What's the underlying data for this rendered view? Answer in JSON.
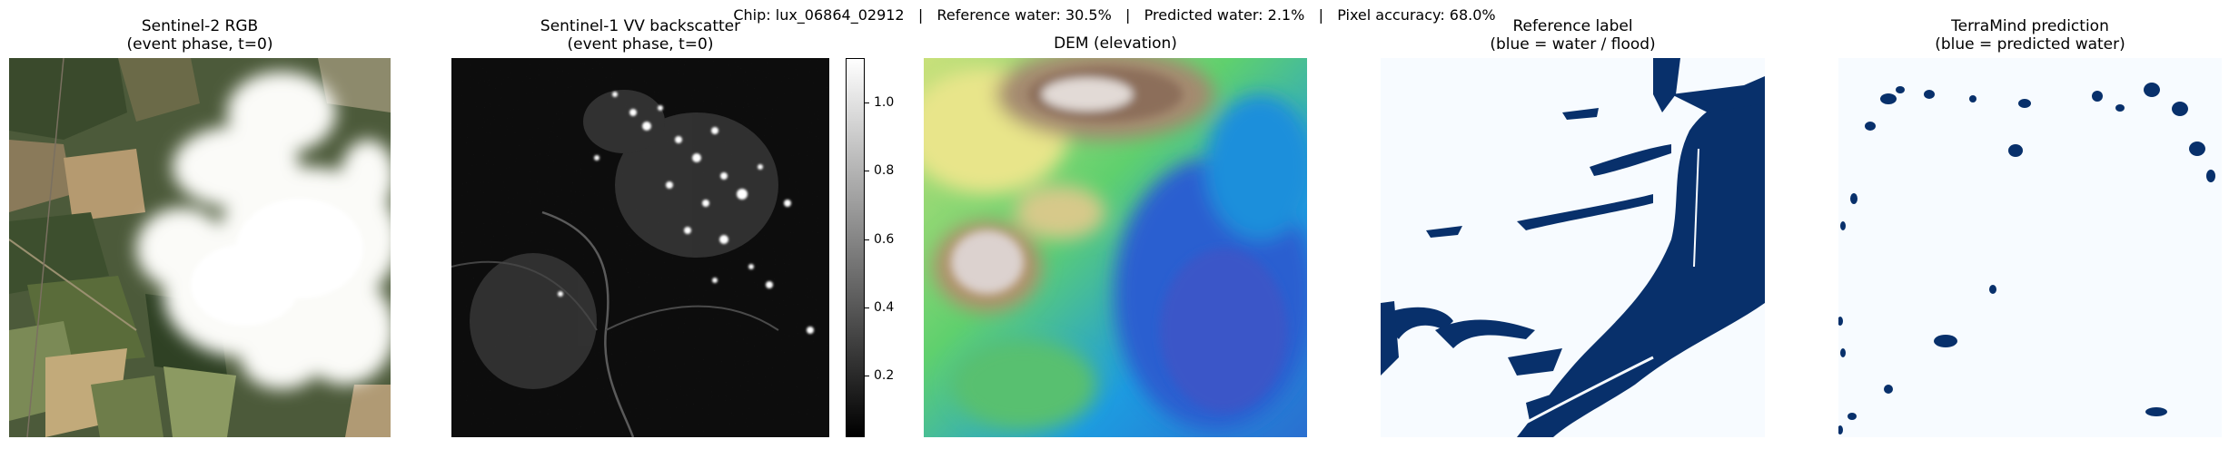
{
  "suptitle": "Chip: lux_06864_02912   |   Reference water: 30.5%   |   Predicted water: 2.1%   |   Pixel accuracy: 68.0%",
  "panels": [
    {
      "line1": "Sentinel-2  RGB",
      "line2": "(event phase, t=0)"
    },
    {
      "line1": "Sentinel-1  VV backscatter",
      "line2": "(event phase, t=0)"
    },
    {
      "line1": "DEM  (elevation)",
      "line2": ""
    },
    {
      "line1": "Reference label",
      "line2": "(blue = water / flood)"
    },
    {
      "line1": "TerraMind prediction",
      "line2": "(blue = predicted water)"
    }
  ],
  "colorbar": {
    "ticks": [
      "0.2",
      "0.4",
      "0.6",
      "0.8",
      "1.0"
    ],
    "range": [
      0.02,
      1.13
    ]
  },
  "colors": {
    "water": "#08306b",
    "land_bg": "#f7fbff"
  },
  "chart_data": [
    {
      "type": "image",
      "title": "Sentinel-2  RGB\n(event phase, t=0)"
    },
    {
      "type": "image",
      "title": "Sentinel-1  VV backscatter\n(event phase, t=0)",
      "colorbar_ticks": [
        0.2,
        0.4,
        0.6,
        0.8,
        1.0
      ],
      "colorbar_range": [
        0.02,
        1.13
      ],
      "colormap": "gray"
    },
    {
      "type": "image",
      "title": "DEM  (elevation)",
      "colormap": "terrain"
    },
    {
      "type": "image",
      "title": "Reference label\n(blue = water / flood)",
      "water_percent": 30.5
    },
    {
      "type": "image",
      "title": "TerraMind prediction\n(blue = predicted water)",
      "water_percent": 2.1,
      "pixel_accuracy_percent": 68.0
    }
  ]
}
